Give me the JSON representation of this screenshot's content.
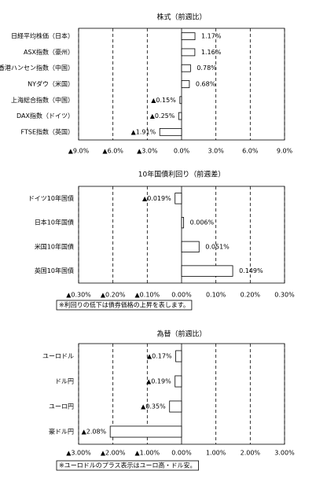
{
  "chart_data": [
    {
      "type": "bar",
      "orientation": "horizontal",
      "title": "株式（前週比）",
      "categories": [
        "日経平均株価（日本）",
        "ASX指数（豪州）",
        "香港ハンセン指数（中国）",
        "NYダウ（米国）",
        "上海総合指数（中国）",
        "DAX指数（ドイツ）",
        "FTSE指数（英国）"
      ],
      "values": [
        1.17,
        1.16,
        0.78,
        0.68,
        -0.15,
        -0.25,
        -1.91
      ],
      "value_labels": [
        "1.17%",
        "1.16%",
        "0.78%",
        "0.68%",
        "▲0.15%",
        "▲0.25%",
        "▲1.91%"
      ],
      "color": "#ffffff",
      "negative_label_color": "#ff0000",
      "xlim": [
        -9,
        9
      ],
      "xticks": [
        {
          "value": -9,
          "label": "▲9.0%"
        },
        {
          "value": -6,
          "label": "▲6.0%"
        },
        {
          "value": -3,
          "label": "▲3.0%"
        },
        {
          "value": 0,
          "label": "0.0%"
        },
        {
          "value": 3,
          "label": "3.0%"
        },
        {
          "value": 6,
          "label": "6.0%"
        },
        {
          "value": 9,
          "label": "9.0%"
        }
      ],
      "grid": true
    },
    {
      "type": "bar",
      "orientation": "horizontal",
      "title": "10年国債利回り（前週差）",
      "categories": [
        "ドイツ10年国債",
        "日本10年国債",
        "米国10年国債",
        "英国10年国債"
      ],
      "values": [
        -0.019,
        0.006,
        0.051,
        0.149
      ],
      "value_labels": [
        "▲0.019%",
        "0.006%",
        "0.051%",
        "0.149%"
      ],
      "color": "#ffffff",
      "negative_label_color": "#ff0000",
      "xlim": [
        -0.3,
        0.3
      ],
      "xticks": [
        {
          "value": -0.3,
          "label": "▲0.30%"
        },
        {
          "value": -0.2,
          "label": "▲0.20%"
        },
        {
          "value": -0.1,
          "label": "▲0.10%"
        },
        {
          "value": 0,
          "label": "0.00%"
        },
        {
          "value": 0.1,
          "label": "0.10%"
        },
        {
          "value": 0.2,
          "label": "0.20%"
        },
        {
          "value": 0.3,
          "label": "0.30%"
        }
      ],
      "grid": true,
      "note": "※利回りの低下は債券価格の上昇を表します。"
    },
    {
      "type": "bar",
      "orientation": "horizontal",
      "title": "為替（前週比）",
      "categories": [
        "ユーロドル",
        "ドル円",
        "ユーロ円",
        "豪ドル円"
      ],
      "values": [
        -0.17,
        -0.19,
        -0.35,
        -2.08
      ],
      "value_labels": [
        "▲0.17%",
        "▲0.19%",
        "▲0.35%",
        "▲2.08%"
      ],
      "color": "#ffffff",
      "negative_label_color": "#ff0000",
      "xlim": [
        -3,
        3
      ],
      "xticks": [
        {
          "value": -3,
          "label": "▲3.00%"
        },
        {
          "value": -2,
          "label": "▲2.00%"
        },
        {
          "value": -1,
          "label": "▲1.00%"
        },
        {
          "value": 0,
          "label": "0.00%"
        },
        {
          "value": 1,
          "label": "1.00%"
        },
        {
          "value": 2,
          "label": "2.00%"
        },
        {
          "value": 3,
          "label": "3.00%"
        }
      ],
      "grid": true,
      "note": "※ユーロドルのプラス表示はユーロ高・ドル安。"
    }
  ]
}
